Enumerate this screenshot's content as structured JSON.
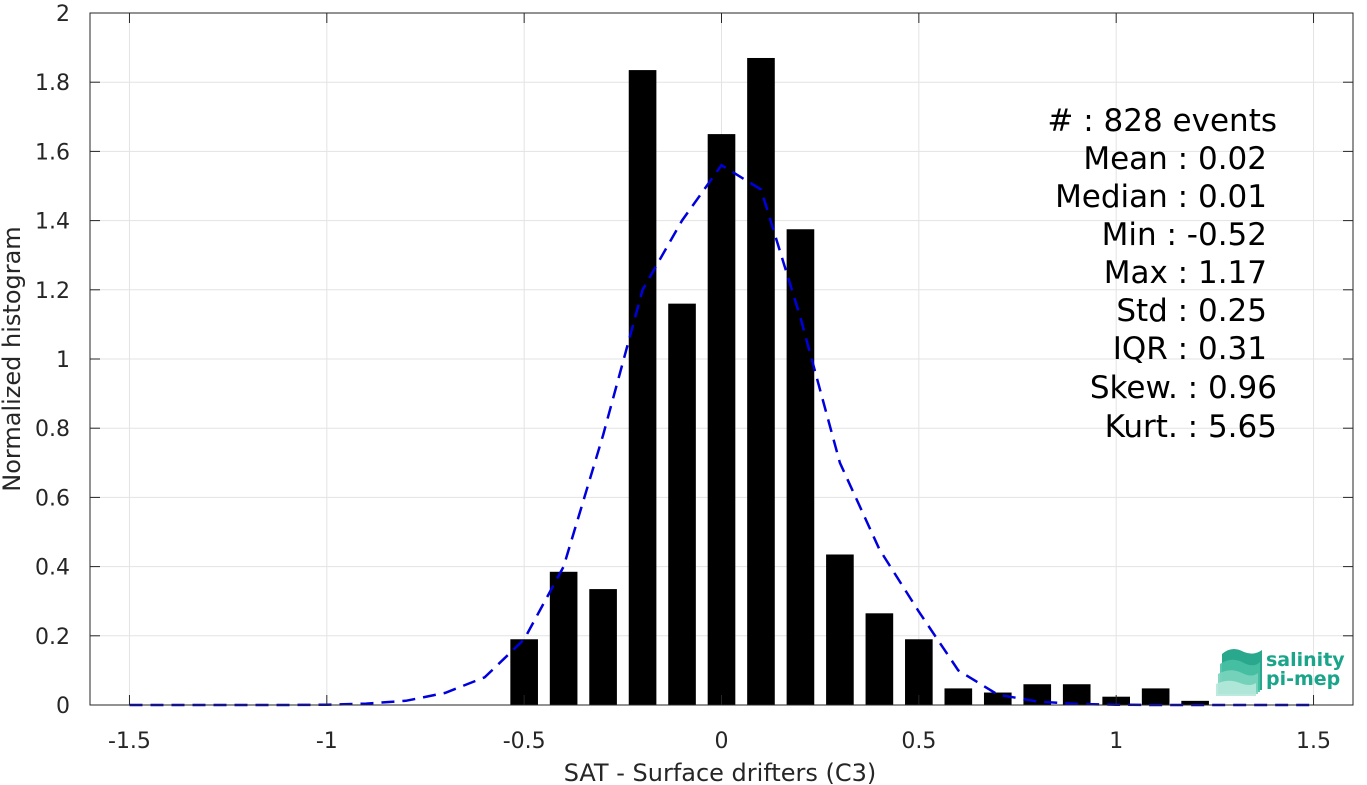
{
  "chart_data": {
    "type": "bar",
    "xlabel": "SAT - Surface drifters (C3)",
    "ylabel": "Normalized histogram",
    "xlim": [
      -1.6,
      1.6
    ],
    "ylim": [
      0,
      2
    ],
    "xticks": [
      -1.5,
      -1,
      -0.5,
      0,
      0.5,
      1,
      1.5
    ],
    "xtick_labels": [
      "-1.5",
      "-1",
      "-0.5",
      "0",
      "0.5",
      "1",
      "1.5"
    ],
    "yticks": [
      0,
      0.2,
      0.4,
      0.6,
      0.8,
      1,
      1.2,
      1.4,
      1.6,
      1.8,
      2
    ],
    "ytick_labels": [
      "0",
      "0.2",
      "0.4",
      "0.6",
      "0.8",
      "1",
      "1.2",
      "1.4",
      "1.6",
      "1.8",
      "2"
    ],
    "grid": true,
    "bar_width": 0.07,
    "bars": {
      "x": [
        -0.5,
        -0.4,
        -0.3,
        -0.2,
        -0.1,
        0,
        0.1,
        0.2,
        0.3,
        0.4,
        0.5,
        0.6,
        0.7,
        0.8,
        0.9,
        1.0,
        1.1,
        1.2
      ],
      "values": [
        0.19,
        0.385,
        0.335,
        1.835,
        1.16,
        1.65,
        1.87,
        1.375,
        0.435,
        0.265,
        0.19,
        0.048,
        0.036,
        0.06,
        0.06,
        0.024,
        0.048,
        0.012
      ],
      "color": "#000000"
    },
    "fit_curve": {
      "style": "dashed",
      "color": "#0000dd",
      "x": [
        -1.5,
        -1.4,
        -1.3,
        -1.2,
        -1.1,
        -1.0,
        -0.9,
        -0.8,
        -0.7,
        -0.6,
        -0.5,
        -0.4,
        -0.3,
        -0.2,
        -0.1,
        0,
        0.1,
        0.2,
        0.3,
        0.4,
        0.5,
        0.6,
        0.7,
        0.8,
        0.9,
        1.0,
        1.1,
        1.2,
        1.3,
        1.4,
        1.5
      ],
      "y": [
        0,
        0,
        0,
        0,
        0,
        0.001,
        0.004,
        0.012,
        0.035,
        0.08,
        0.19,
        0.4,
        0.78,
        1.2,
        1.4,
        1.56,
        1.49,
        1.12,
        0.7,
        0.45,
        0.27,
        0.1,
        0.03,
        0.01,
        0.003,
        0.001,
        0,
        0,
        0,
        0,
        0
      ]
    }
  },
  "stats": [
    "#  : 828 events",
    "Mean : 0.02",
    "Median : 0.01",
    "Min : -0.52",
    "Max : 1.17",
    "Std : 0.25",
    "IQR : 0.31",
    "Skew. : 0.96",
    "Kurt. : 5.65"
  ],
  "logo": {
    "line1": "salinity",
    "line2": "pi-mep",
    "color": "#1aa58a"
  }
}
